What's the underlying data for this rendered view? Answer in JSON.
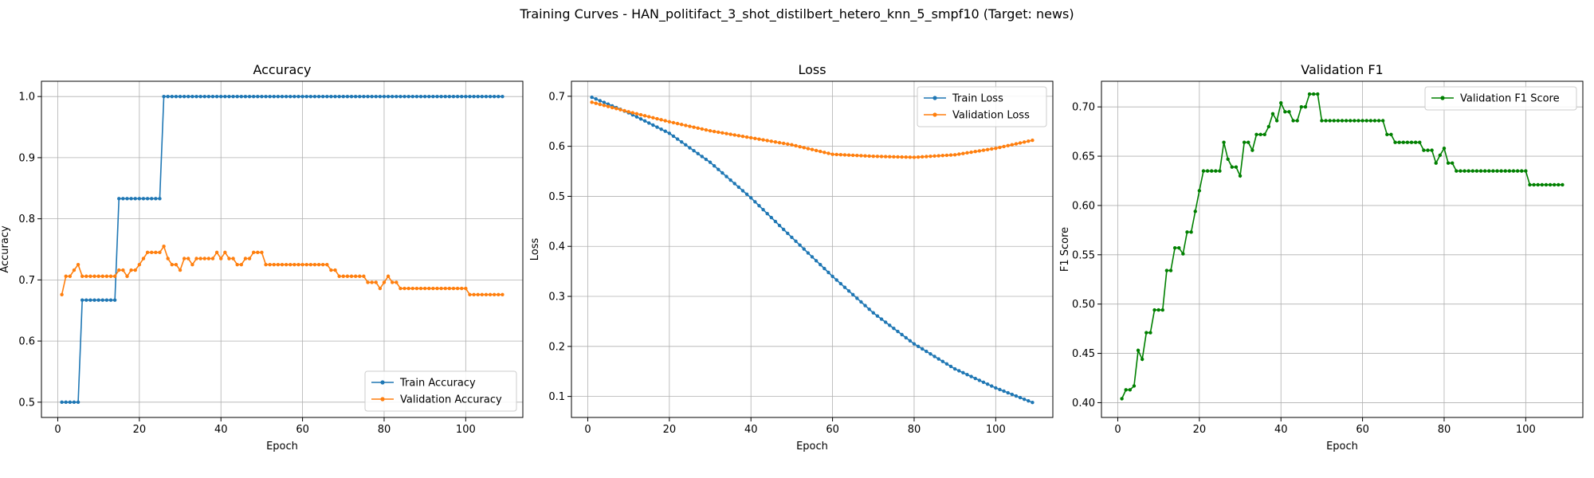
{
  "suptitle": "Training Curves - HAN_politifact_3_shot_distilbert_hetero_knn_5_smpf10 (Target: news)",
  "colors": {
    "train": "#1f77b4",
    "validation": "#ff7f0e",
    "f1": "#008000",
    "grid": "#b0b0b0"
  },
  "chart_data": [
    {
      "type": "line",
      "title": "Accuracy",
      "xlabel": "Epoch",
      "ylabel": "Accuracy",
      "xlim": [
        -4,
        114
      ],
      "ylim": [
        0.475,
        1.025
      ],
      "xticks": [
        0,
        20,
        40,
        60,
        80,
        100
      ],
      "yticks": [
        0.5,
        0.6,
        0.7,
        0.8,
        0.9,
        1.0
      ],
      "ytick_labels": [
        "0.5",
        "0.6",
        "0.7",
        "0.8",
        "0.9",
        "1.0"
      ],
      "grid": true,
      "legend_position": "lower right",
      "series": [
        {
          "name": "Train Accuracy",
          "color": "#1f77b4",
          "segments": [
            [
              1,
              5,
              0.5
            ],
            [
              6,
              14,
              0.667
            ],
            [
              15,
              25,
              0.833
            ],
            [
              26,
              109,
              1.0
            ]
          ]
        },
        {
          "name": "Validation Accuracy",
          "color": "#ff7f0e",
          "values": [
            0.676,
            0.706,
            0.706,
            0.716,
            0.725,
            0.706,
            0.706,
            0.706,
            0.706,
            0.706,
            0.706,
            0.706,
            0.706,
            0.706,
            0.716,
            0.716,
            0.706,
            0.716,
            0.716,
            0.725,
            0.735,
            0.745,
            0.745,
            0.745,
            0.745,
            0.755,
            0.735,
            0.725,
            0.725,
            0.716,
            0.735,
            0.735,
            0.725,
            0.735,
            0.735,
            0.735,
            0.735,
            0.735,
            0.745,
            0.735,
            0.745,
            0.735,
            0.735,
            0.725,
            0.725,
            0.735,
            0.735,
            0.745,
            0.745,
            0.745,
            0.725,
            0.725,
            0.725,
            0.725,
            0.725,
            0.725,
            0.725,
            0.725,
            0.725,
            0.725,
            0.725,
            0.725,
            0.725,
            0.725,
            0.725,
            0.725,
            0.716,
            0.716,
            0.706,
            0.706,
            0.706,
            0.706,
            0.706,
            0.706,
            0.706,
            0.696,
            0.696,
            0.696,
            0.686,
            0.696,
            0.706,
            0.696,
            0.696,
            0.686,
            0.686,
            0.686,
            0.686,
            0.686,
            0.686,
            0.686,
            0.686,
            0.686,
            0.686,
            0.686,
            0.686,
            0.686,
            0.686,
            0.686,
            0.686,
            0.686,
            0.676,
            0.676,
            0.676,
            0.676,
            0.676,
            0.676,
            0.676,
            0.676,
            0.676
          ]
        }
      ]
    },
    {
      "type": "line",
      "title": "Loss",
      "xlabel": "Epoch",
      "ylabel": "Loss",
      "xlim": [
        -4,
        114
      ],
      "ylim": [
        0.058,
        0.73
      ],
      "xticks": [
        0,
        20,
        40,
        60,
        80,
        100
      ],
      "yticks": [
        0.1,
        0.2,
        0.3,
        0.4,
        0.5,
        0.6,
        0.7
      ],
      "ytick_labels": [
        "0.1",
        "0.2",
        "0.3",
        "0.4",
        "0.5",
        "0.6",
        "0.7"
      ],
      "grid": true,
      "legend_position": "upper right",
      "series": [
        {
          "name": "Train Loss",
          "color": "#1f77b4",
          "anchors": [
            [
              1,
              0.698
            ],
            [
              10,
              0.667
            ],
            [
              20,
              0.626
            ],
            [
              30,
              0.568
            ],
            [
              40,
              0.497
            ],
            [
              50,
              0.418
            ],
            [
              60,
              0.34
            ],
            [
              70,
              0.267
            ],
            [
              80,
              0.205
            ],
            [
              90,
              0.155
            ],
            [
              100,
              0.117
            ],
            [
              109,
              0.088
            ]
          ]
        },
        {
          "name": "Validation Loss",
          "color": "#ff7f0e",
          "anchors": [
            [
              1,
              0.688
            ],
            [
              10,
              0.669
            ],
            [
              20,
              0.649
            ],
            [
              30,
              0.631
            ],
            [
              40,
              0.617
            ],
            [
              50,
              0.603
            ],
            [
              60,
              0.584
            ],
            [
              65,
              0.582
            ],
            [
              70,
              0.58
            ],
            [
              80,
              0.578
            ],
            [
              90,
              0.583
            ],
            [
              100,
              0.596
            ],
            [
              109,
              0.612
            ]
          ]
        }
      ]
    },
    {
      "type": "line",
      "title": "Validation F1",
      "xlabel": "Epoch",
      "ylabel": "F1 Score",
      "xlim": [
        -4,
        114
      ],
      "ylim": [
        0.385,
        0.726
      ],
      "xticks": [
        0,
        20,
        40,
        60,
        80,
        100
      ],
      "yticks": [
        0.4,
        0.45,
        0.5,
        0.55,
        0.6,
        0.65,
        0.7
      ],
      "ytick_labels": [
        "0.40",
        "0.45",
        "0.50",
        "0.55",
        "0.60",
        "0.65",
        "0.70"
      ],
      "grid": true,
      "legend_position": "upper right",
      "series": [
        {
          "name": "Validation F1 Score",
          "color": "#008000",
          "values": [
            0.404,
            0.413,
            0.413,
            0.417,
            0.453,
            0.444,
            0.471,
            0.471,
            0.494,
            0.494,
            0.494,
            0.534,
            0.534,
            0.557,
            0.557,
            0.551,
            0.573,
            0.573,
            0.594,
            0.615,
            0.635,
            0.635,
            0.635,
            0.635,
            0.635,
            0.664,
            0.647,
            0.639,
            0.639,
            0.63,
            0.664,
            0.664,
            0.656,
            0.672,
            0.672,
            0.672,
            0.68,
            0.693,
            0.686,
            0.704,
            0.695,
            0.695,
            0.686,
            0.686,
            0.7,
            0.7,
            0.713,
            0.713,
            0.713,
            0.686,
            0.686,
            0.686,
            0.686,
            0.686,
            0.686,
            0.686,
            0.686,
            0.686,
            0.686,
            0.686,
            0.686,
            0.686,
            0.686,
            0.686,
            0.686,
            0.672,
            0.672,
            0.664,
            0.664,
            0.664,
            0.664,
            0.664,
            0.664,
            0.664,
            0.656,
            0.656,
            0.656,
            0.643,
            0.651,
            0.658,
            0.643,
            0.643,
            0.635,
            0.635,
            0.635,
            0.635,
            0.635,
            0.635,
            0.635,
            0.635,
            0.635,
            0.635,
            0.635,
            0.635,
            0.635,
            0.635,
            0.635,
            0.635,
            0.635,
            0.635,
            0.621,
            0.621,
            0.621,
            0.621,
            0.621,
            0.621,
            0.621,
            0.621,
            0.621
          ]
        }
      ]
    }
  ]
}
